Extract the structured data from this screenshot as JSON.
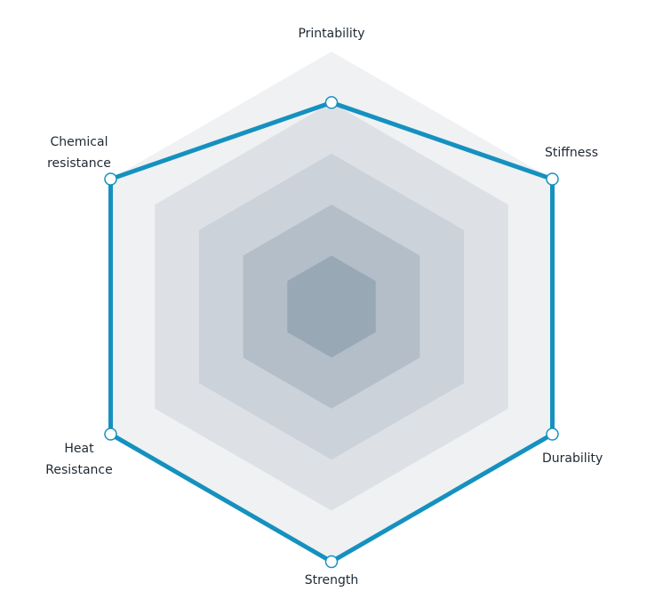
{
  "chart_data": {
    "type": "radar",
    "title": "",
    "axes": [
      "Printability",
      "Stiffness",
      "Durability",
      "Strength",
      "Heat Resistance",
      "Chemical resistance"
    ],
    "axis_label_lines": [
      [
        "Printability"
      ],
      [
        "Stiffness"
      ],
      [
        "Durability"
      ],
      [
        "Strength"
      ],
      [
        "Heat",
        "Resistance"
      ],
      [
        "Chemical",
        "resistance"
      ]
    ],
    "scale": {
      "min": 0,
      "max": 5,
      "rings": 5
    },
    "series": [
      {
        "values": [
          4.0,
          5.0,
          5.0,
          5.0,
          5.0,
          5.0
        ]
      }
    ],
    "colors": {
      "series_line": "#1591bf",
      "marker_fill": "#ffffff",
      "rings": [
        "#f0f1f3",
        "#dde1e6",
        "#cbd2da",
        "#b3bec8",
        "#98a8b5"
      ]
    }
  }
}
